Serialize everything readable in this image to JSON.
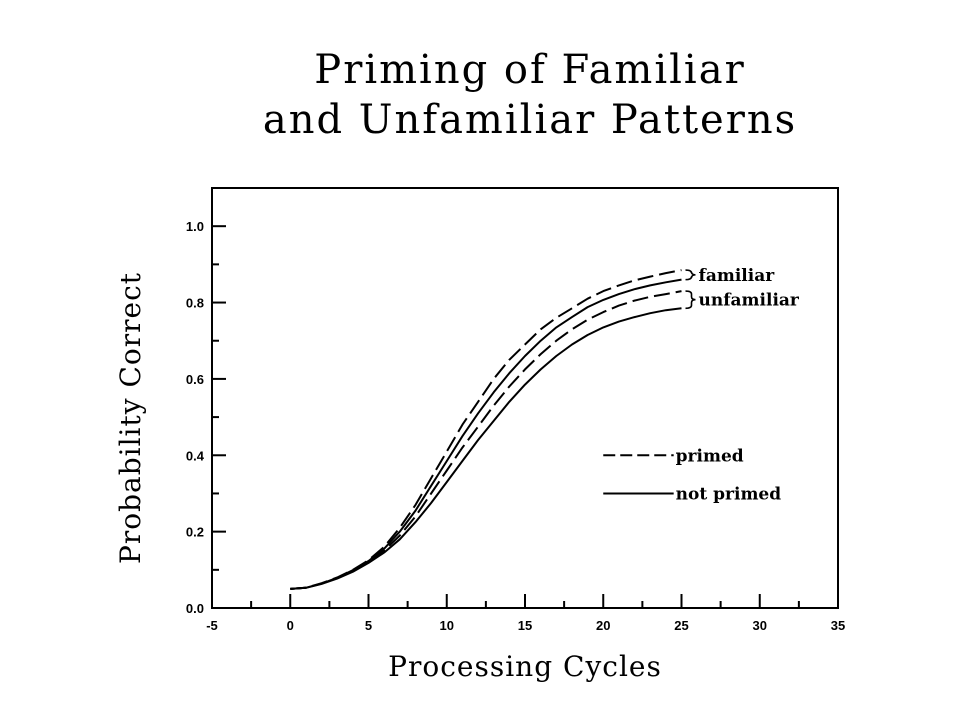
{
  "chart_data": {
    "type": "line",
    "title_lines": [
      "Priming of Familiar",
      "and Unfamiliar Patterns"
    ],
    "xlabel": "Processing Cycles",
    "ylabel": "Probability Correct",
    "xlim": [
      -5,
      35
    ],
    "ylim": [
      0,
      1.1
    ],
    "xticks": [
      "-5",
      "0",
      "5",
      "10",
      "15",
      "20",
      "25",
      "30",
      "35"
    ],
    "yticks": [
      "0.0",
      "0.2",
      "0.4",
      "0.6",
      "0.8",
      "1.0"
    ],
    "grid": false,
    "x": [
      0,
      1,
      2,
      3,
      4,
      5,
      6,
      7,
      8,
      9,
      10,
      11,
      12,
      13,
      14,
      15,
      16,
      17,
      18,
      19,
      20,
      21,
      22,
      23,
      24,
      25
    ],
    "series": [
      {
        "group": "familiar",
        "style": "primed",
        "values": [
          0.05,
          0.053,
          0.065,
          0.08,
          0.1,
          0.125,
          0.16,
          0.21,
          0.27,
          0.34,
          0.41,
          0.48,
          0.54,
          0.6,
          0.65,
          0.69,
          0.73,
          0.76,
          0.785,
          0.81,
          0.83,
          0.845,
          0.858,
          0.868,
          0.877,
          0.885
        ]
      },
      {
        "group": "familiar",
        "style": "not primed",
        "values": [
          0.05,
          0.053,
          0.064,
          0.079,
          0.099,
          0.123,
          0.155,
          0.2,
          0.255,
          0.32,
          0.385,
          0.45,
          0.51,
          0.565,
          0.615,
          0.66,
          0.7,
          0.735,
          0.762,
          0.788,
          0.807,
          0.822,
          0.835,
          0.845,
          0.853,
          0.86
        ]
      },
      {
        "group": "unfamiliar",
        "style": "primed",
        "values": [
          0.05,
          0.053,
          0.064,
          0.078,
          0.097,
          0.12,
          0.15,
          0.19,
          0.24,
          0.3,
          0.36,
          0.42,
          0.475,
          0.53,
          0.58,
          0.625,
          0.665,
          0.7,
          0.73,
          0.755,
          0.775,
          0.792,
          0.805,
          0.815,
          0.822,
          0.83
        ]
      },
      {
        "group": "unfamiliar",
        "style": "not primed",
        "values": [
          0.05,
          0.053,
          0.063,
          0.077,
          0.095,
          0.118,
          0.145,
          0.18,
          0.225,
          0.275,
          0.33,
          0.385,
          0.44,
          0.49,
          0.54,
          0.585,
          0.625,
          0.66,
          0.69,
          0.715,
          0.735,
          0.75,
          0.762,
          0.772,
          0.78,
          0.785
        ]
      }
    ],
    "group_labels": [
      "familiar",
      "unfamiliar"
    ],
    "legend": [
      {
        "label": "primed",
        "style": "dashed"
      },
      {
        "label": "not primed",
        "style": "solid"
      }
    ],
    "legend_position": "center-right"
  }
}
